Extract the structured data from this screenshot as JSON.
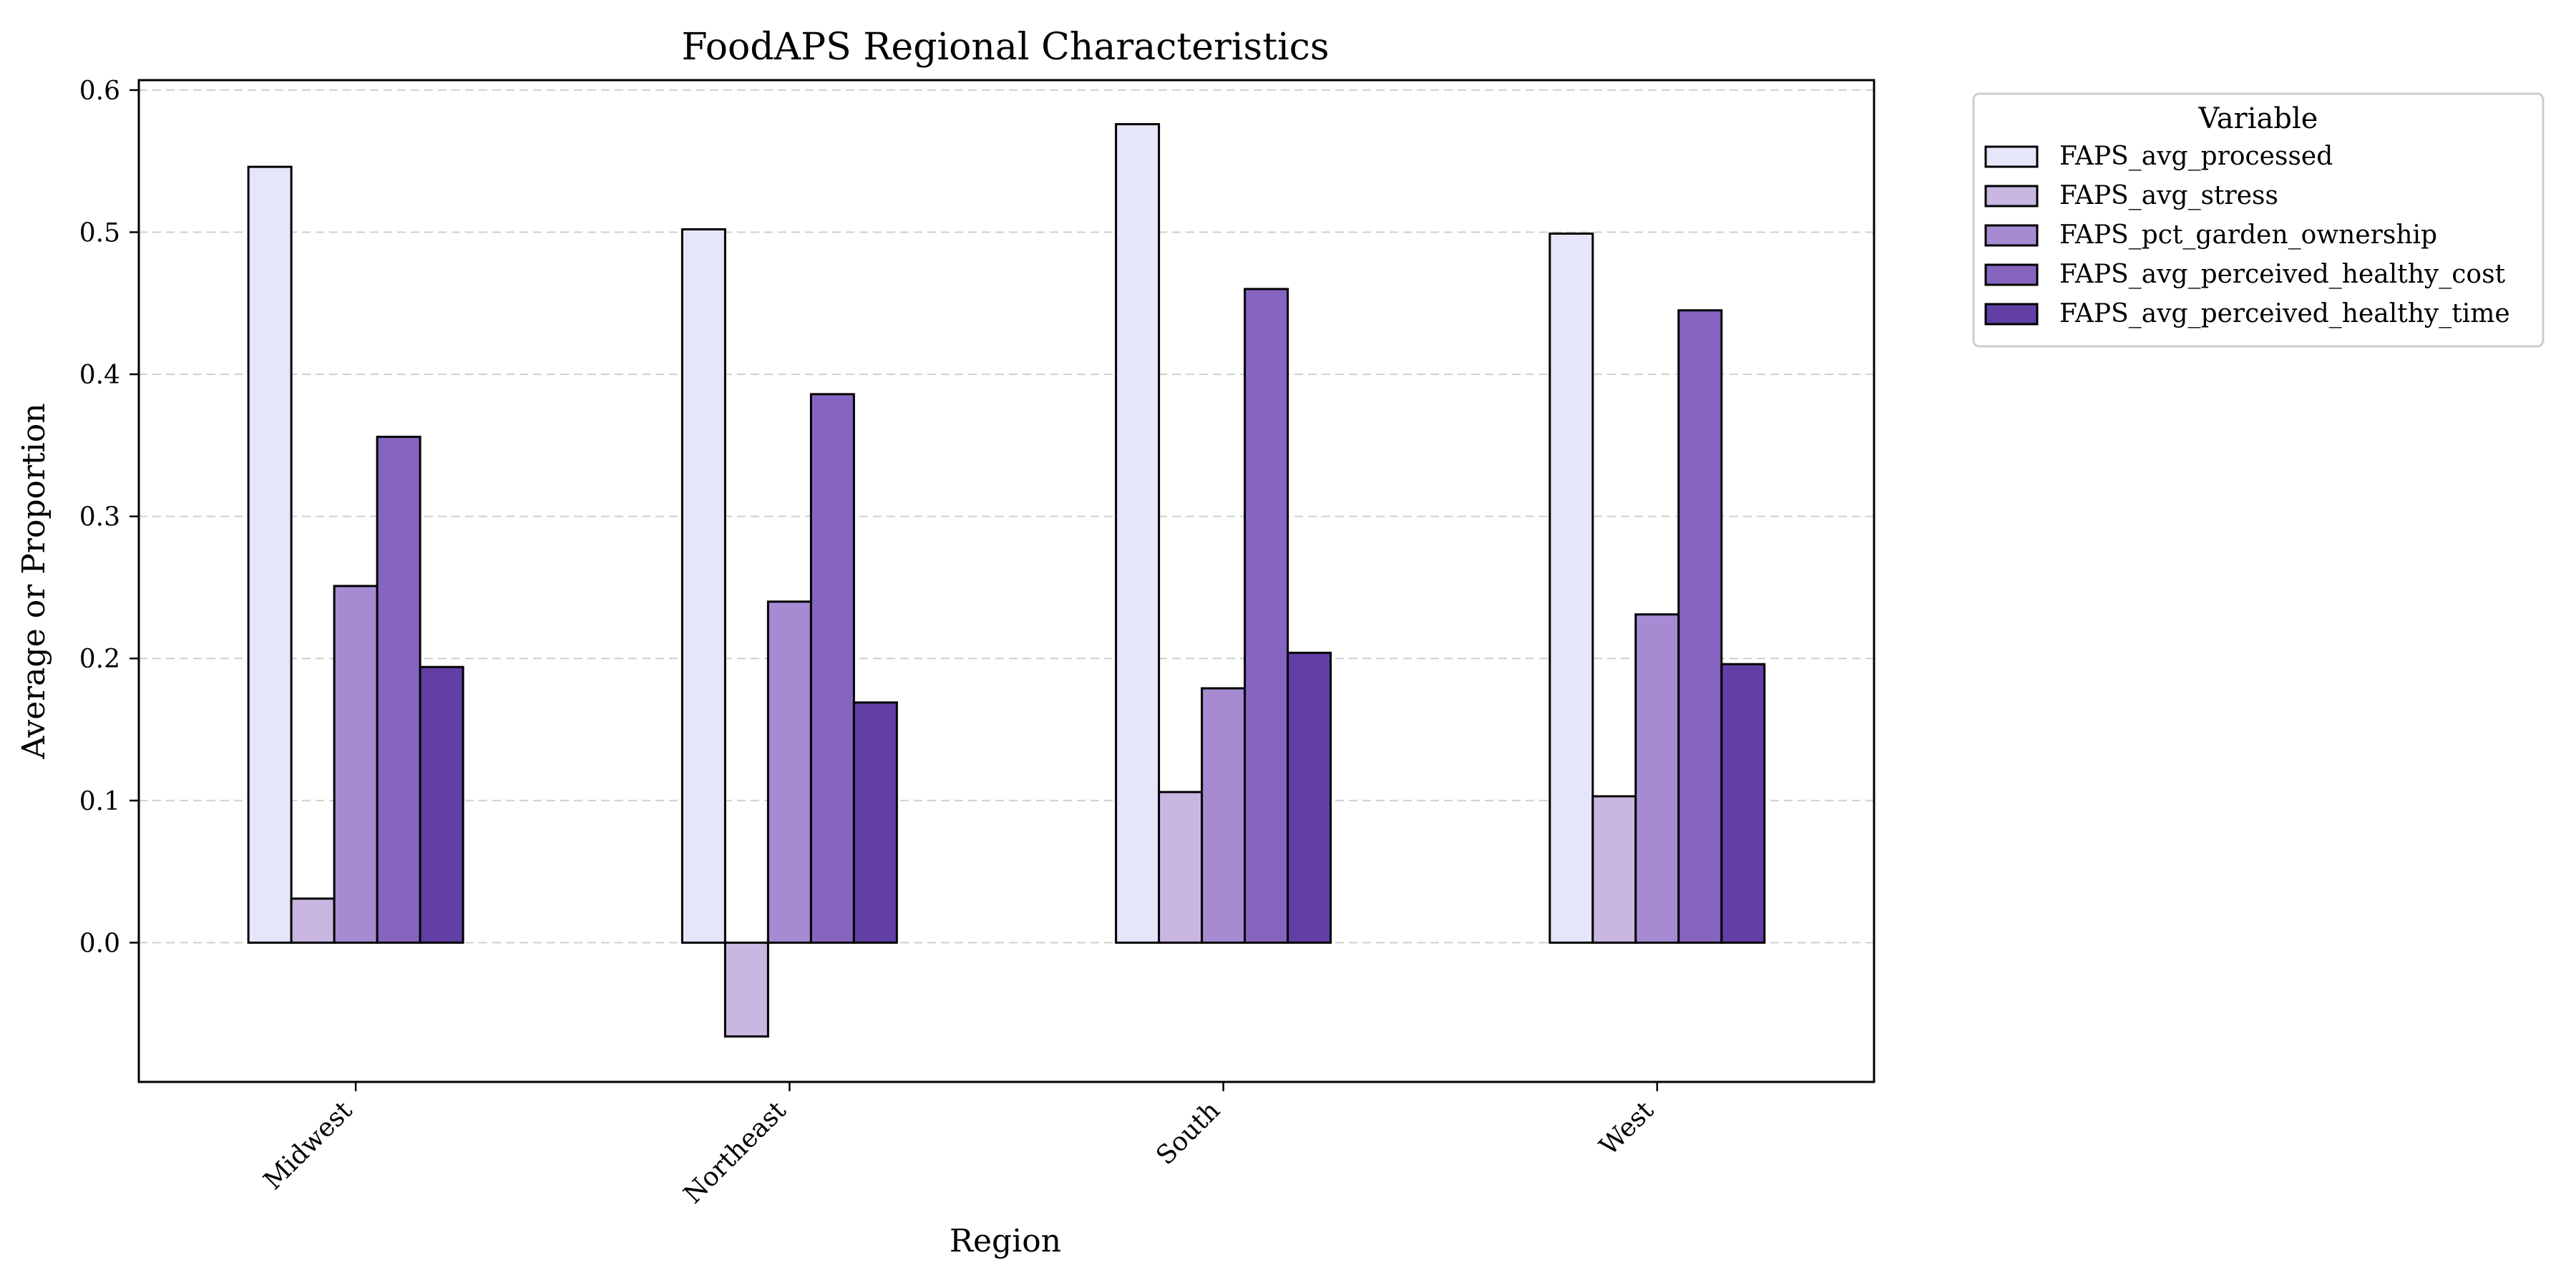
{
  "chart_data": {
    "type": "bar",
    "title": "FoodAPS Regional Characteristics",
    "xlabel": "Region",
    "ylabel": "Average or Proportion",
    "categories": [
      "Midwest",
      "Northeast",
      "South",
      "West"
    ],
    "series": [
      {
        "name": "FAPS_avg_processed",
        "values": [
          0.546,
          0.502,
          0.576,
          0.499
        ],
        "color": "#e6e6fa"
      },
      {
        "name": "FAPS_avg_stress",
        "values": [
          0.031,
          -0.066,
          0.106,
          0.103
        ],
        "color": "#c9b7e2"
      },
      {
        "name": "FAPS_pct_garden_ownership",
        "values": [
          0.251,
          0.24,
          0.179,
          0.231
        ],
        "color": "#a68bd3"
      },
      {
        "name": "FAPS_avg_perceived_healthy_cost",
        "values": [
          0.356,
          0.386,
          0.46,
          0.445
        ],
        "color": "#8665c0"
      },
      {
        "name": "FAPS_avg_perceived_healthy_time",
        "values": [
          0.194,
          0.169,
          0.204,
          0.196
        ],
        "color": "#613fa5"
      }
    ],
    "ylim": [
      -0.098,
      0.607
    ],
    "yticks": [
      "0.0",
      "0.1",
      "0.2",
      "0.3",
      "0.4",
      "0.5",
      "0.6"
    ],
    "ytick_values": [
      0.0,
      0.1,
      0.2,
      0.3,
      0.4,
      0.5,
      0.6
    ],
    "grid": true,
    "legend": {
      "title": "Variable",
      "position": "outside-top-right"
    }
  }
}
